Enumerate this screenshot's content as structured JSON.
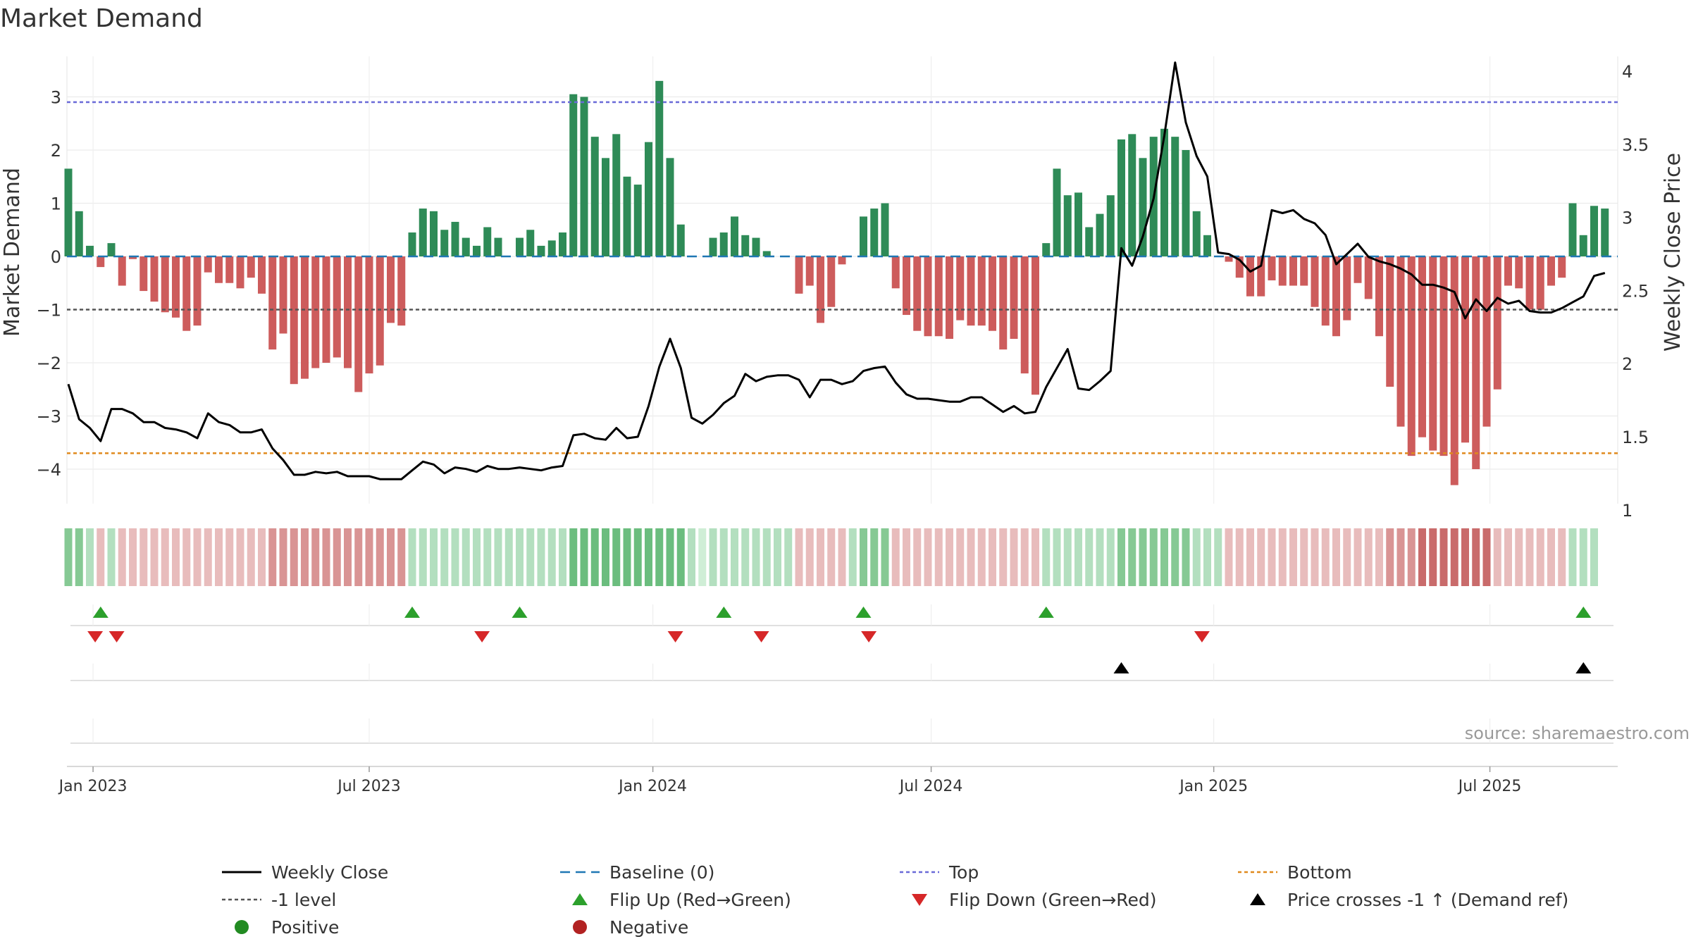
{
  "chart_data": {
    "type": "bar",
    "title": "Market Demand",
    "ylabel_left": "Market Demand",
    "ylabel_right": "Weekly Close Price",
    "source": "source: sharemaestro.com",
    "ylim_left": [
      -4.7,
      3.75
    ],
    "ylim_right": [
      0.97,
      4.15
    ],
    "left_ticks": [
      {
        "value": 3,
        "label": "3"
      },
      {
        "value": 2,
        "label": "2"
      },
      {
        "value": 1,
        "label": "1"
      },
      {
        "value": 0,
        "label": "0"
      },
      {
        "value": -1,
        "label": "−1"
      },
      {
        "value": -2,
        "label": "−2"
      },
      {
        "value": -3,
        "label": "−3"
      },
      {
        "value": -4,
        "label": "−4"
      }
    ],
    "right_ticks": [
      {
        "value": 4,
        "label": "4"
      },
      {
        "value": 3.5,
        "label": "3.5"
      },
      {
        "value": 3,
        "label": "3"
      },
      {
        "value": 2.5,
        "label": "2.5"
      },
      {
        "value": 2,
        "label": "2"
      },
      {
        "value": 1.5,
        "label": "1.5"
      },
      {
        "value": 1,
        "label": "1"
      }
    ],
    "date_ticks": [
      {
        "week": 2.3,
        "label": "Jan 2023"
      },
      {
        "week": 28.0,
        "label": "Jul 2023"
      },
      {
        "week": 54.4,
        "label": "Jan 2024"
      },
      {
        "week": 80.3,
        "label": "Jul 2024"
      },
      {
        "week": 106.6,
        "label": "Jan 2025"
      },
      {
        "week": 132.3,
        "label": "Jul 2025"
      }
    ],
    "reference_lines": {
      "top": 2.9,
      "bottom": -3.7,
      "minus_one": -1,
      "baseline": 0
    },
    "colors": {
      "positive_bar": "#2e8b57",
      "negative_bar": "#cd5c5c",
      "price_line": "#000000",
      "top_line": "#6a6ad8",
      "bottom_line": "#e08a1e",
      "minus_one_line": "#555555",
      "baseline": "#1f77b4",
      "flip_up": "#2ca02c",
      "flip_down": "#d62728",
      "price_cross": "#000000",
      "positive_dot": "#228b22",
      "negative_dot": "#b22222"
    },
    "demand": [
      1.65,
      0.85,
      0.2,
      -0.2,
      0.25,
      -0.55,
      -0.05,
      -0.65,
      -0.85,
      -1.05,
      -1.15,
      -1.4,
      -1.3,
      -0.3,
      -0.5,
      -0.5,
      -0.6,
      -0.4,
      -0.7,
      -1.75,
      -1.45,
      -2.4,
      -2.3,
      -2.1,
      -2.0,
      -1.9,
      -2.1,
      -2.55,
      -2.2,
      -2.05,
      -1.25,
      -1.3,
      0.45,
      0.9,
      0.85,
      0.5,
      0.65,
      0.35,
      0.2,
      0.55,
      0.35,
      0.0,
      0.35,
      0.5,
      0.2,
      0.3,
      0.45,
      3.05,
      3.0,
      2.25,
      1.85,
      2.3,
      1.5,
      1.35,
      2.15,
      3.3,
      1.85,
      0.6,
      0.0,
      0.0,
      0.35,
      0.45,
      0.75,
      0.4,
      0.35,
      0.1,
      0.0,
      0.0,
      -0.7,
      -0.55,
      -1.25,
      -0.95,
      -0.15,
      0.0,
      0.75,
      0.9,
      1.0,
      -0.6,
      -1.1,
      -1.4,
      -1.5,
      -1.5,
      -1.55,
      -1.2,
      -1.3,
      -1.3,
      -1.4,
      -1.75,
      -1.55,
      -2.2,
      -2.6,
      0.25,
      1.65,
      1.15,
      1.2,
      0.55,
      0.8,
      1.15,
      2.2,
      2.3,
      1.85,
      2.25,
      2.4,
      2.25,
      2.0,
      0.85,
      0.4,
      0.0,
      -0.1,
      -0.4,
      -0.75,
      -0.75,
      -0.45,
      -0.55,
      -0.55,
      -0.55,
      -0.95,
      -1.3,
      -1.5,
      -1.2,
      -0.5,
      -0.8,
      -1.5,
      -2.45,
      -3.2,
      -3.75,
      -3.4,
      -3.65,
      -3.75,
      -4.3,
      -3.5,
      -4.0,
      -3.2,
      -2.5,
      -0.55,
      -0.6,
      -1.0,
      -1.0,
      -0.55,
      -0.4,
      1.0,
      0.4,
      0.95,
      0.9
    ],
    "price": [
      1.86,
      1.62,
      1.56,
      1.47,
      1.69,
      1.69,
      1.66,
      1.6,
      1.6,
      1.56,
      1.55,
      1.53,
      1.49,
      1.66,
      1.6,
      1.58,
      1.53,
      1.53,
      1.55,
      1.42,
      1.34,
      1.24,
      1.24,
      1.26,
      1.25,
      1.26,
      1.23,
      1.23,
      1.23,
      1.21,
      1.21,
      1.21,
      1.27,
      1.33,
      1.31,
      1.25,
      1.29,
      1.28,
      1.26,
      1.3,
      1.28,
      1.28,
      1.29,
      1.28,
      1.27,
      1.29,
      1.3,
      1.51,
      1.52,
      1.49,
      1.48,
      1.56,
      1.49,
      1.5,
      1.71,
      1.98,
      2.17,
      1.97,
      1.63,
      1.59,
      1.65,
      1.73,
      1.78,
      1.93,
      1.88,
      1.91,
      1.92,
      1.92,
      1.89,
      1.77,
      1.89,
      1.89,
      1.86,
      1.88,
      1.95,
      1.97,
      1.98,
      1.87,
      1.79,
      1.76,
      1.76,
      1.75,
      1.74,
      1.74,
      1.77,
      1.77,
      1.72,
      1.67,
      1.71,
      1.66,
      1.67,
      1.84,
      1.97,
      2.1,
      1.83,
      1.82,
      1.88,
      1.95,
      2.79,
      2.67,
      2.87,
      3.13,
      3.56,
      4.06,
      3.65,
      3.42,
      3.28,
      2.76,
      2.75,
      2.71,
      2.63,
      2.67,
      3.05,
      3.03,
      3.05,
      2.99,
      2.96,
      2.88,
      2.68,
      2.75,
      2.82,
      2.73,
      2.7,
      2.68,
      2.65,
      2.61,
      2.54,
      2.54,
      2.52,
      2.49,
      2.31,
      2.44,
      2.36,
      2.45,
      2.41,
      2.43,
      2.36,
      2.35,
      2.35,
      2.38,
      2.42,
      2.46,
      2.6,
      2.62
    ],
    "strength_strip": [
      2,
      2,
      1,
      1,
      1,
      1,
      1,
      1,
      1,
      1,
      1,
      1,
      1,
      1,
      1,
      1,
      1,
      1,
      1,
      2,
      2,
      2,
      2,
      2,
      2,
      2,
      2,
      2,
      2,
      2,
      2,
      2,
      1,
      1,
      1,
      1,
      1,
      1,
      1,
      1,
      1,
      1,
      1,
      1,
      1,
      1,
      1,
      3,
      3,
      3,
      3,
      3,
      3,
      3,
      3,
      3,
      3,
      3,
      1,
      0,
      1,
      1,
      1,
      1,
      1,
      1,
      1,
      1,
      1,
      1,
      1,
      1,
      1,
      1,
      2,
      2,
      2,
      1,
      1,
      1,
      1,
      1,
      1,
      1,
      1,
      1,
      1,
      1,
      1,
      1,
      1,
      1,
      1,
      1,
      1,
      1,
      1,
      1,
      2,
      2,
      2,
      2,
      2,
      2,
      2,
      1,
      1,
      1,
      1,
      1,
      1,
      1,
      1,
      1,
      1,
      1,
      1,
      1,
      1,
      1,
      1,
      1,
      1,
      2,
      2,
      2,
      3,
      3,
      3,
      3,
      3,
      3,
      3,
      1,
      1,
      1,
      1,
      1,
      1,
      1,
      1,
      1,
      1
    ],
    "flip_up_weeks": [
      3,
      32,
      42,
      61,
      74,
      91,
      141
    ],
    "flip_down_weeks": [
      2.5,
      4.5,
      38.5,
      56.5,
      64.5,
      74.5,
      105.5
    ],
    "price_cross_weeks": [
      98,
      141
    ],
    "legend": [
      {
        "key": "weekly_close",
        "label": "Weekly Close",
        "marker": "line-solid",
        "color": "#000000"
      },
      {
        "key": "baseline",
        "label": "Baseline (0)",
        "marker": "line-dashed",
        "color": "#1f77b4"
      },
      {
        "key": "top",
        "label": "Top",
        "marker": "line-dotted",
        "color": "#6a6ad8"
      },
      {
        "key": "bottom",
        "label": "Bottom",
        "marker": "line-dotted",
        "color": "#e08a1e"
      },
      {
        "key": "minus_one",
        "label": "-1 level",
        "marker": "line-dotted",
        "color": "#555555"
      },
      {
        "key": "flip_up",
        "label": "Flip Up (Red→Green)",
        "marker": "triangle-up",
        "color": "#2ca02c"
      },
      {
        "key": "flip_down",
        "label": "Flip Down (Green→Red)",
        "marker": "triangle-down",
        "color": "#d62728"
      },
      {
        "key": "price_cross",
        "label": "Price crosses -1 ↑ (Demand ref)",
        "marker": "triangle-up",
        "color": "#000000"
      },
      {
        "key": "positive",
        "label": "Positive",
        "marker": "circle",
        "color": "#228b22"
      },
      {
        "key": "negative",
        "label": "Negative",
        "marker": "circle",
        "color": "#b22222"
      }
    ]
  }
}
